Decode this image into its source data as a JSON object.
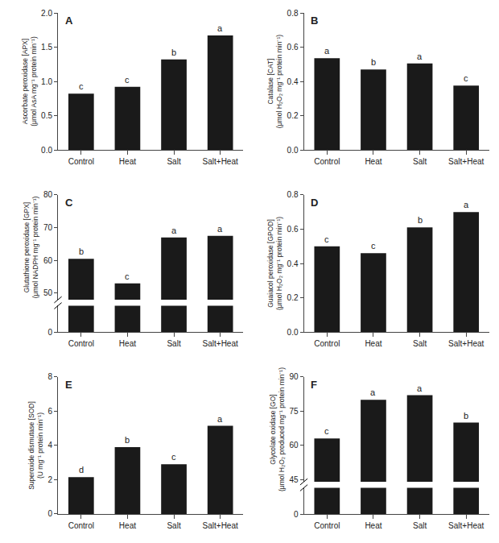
{
  "chart_data": [
    {
      "type": "bar",
      "title": "A",
      "categories": [
        "Control",
        "Heat",
        "Salt",
        "Salt+Heat"
      ],
      "values": [
        0.82,
        0.92,
        1.32,
        1.67
      ],
      "color": "#1a1a1a",
      "ylabel": "Ascorbate peroxidase [APX]\n(μmol AsA mg⁻¹ protein min⁻¹)",
      "ylim": [
        0.0,
        2.0
      ],
      "yticks": [
        {
          "value": 0.0,
          "label": "0.0"
        },
        0.5,
        {
          "value": 1.0,
          "label": "1.0"
        },
        1.5,
        {
          "value": 2.0,
          "label": "2.0"
        }
      ],
      "annotations": [
        {
          "x": "Control",
          "text": "c"
        },
        {
          "x": "Heat",
          "text": "c"
        },
        {
          "x": "Salt",
          "text": "b"
        },
        {
          "x": "Salt+Heat",
          "text": "a"
        }
      ],
      "grid": false
    },
    {
      "type": "bar",
      "title": "B",
      "categories": [
        "Control",
        "Heat",
        "Salt",
        "Salt+Heat"
      ],
      "values": [
        0.535,
        0.47,
        0.505,
        0.375
      ],
      "color": "#1a1a1a",
      "ylabel": "Catalase [CAT]\n(μmol H₂O₂ mg⁻¹ protein min⁻¹)",
      "ylim": [
        0.0,
        0.8
      ],
      "yticks": [
        {
          "value": 0.0,
          "label": "0.0"
        },
        0.2,
        0.4,
        0.6,
        0.8
      ],
      "annotations": [
        {
          "x": "Control",
          "text": "a"
        },
        {
          "x": "Heat",
          "text": "b"
        },
        {
          "x": "Salt",
          "text": "a"
        },
        {
          "x": "Salt+Heat",
          "text": "c"
        }
      ],
      "grid": false
    },
    {
      "type": "bar",
      "title": "C",
      "categories": [
        "Control",
        "Heat",
        "Salt",
        "Salt+Heat"
      ],
      "values": [
        60.5,
        53.0,
        67.0,
        67.5
      ],
      "color": "#1a1a1a",
      "ylabel": "Glutathione peroxidase [GPX]\n(μmol NADPH mg⁻¹ protein min⁻¹)",
      "ylim": [
        [
          0,
          6
        ],
        [
          48,
          80
        ]
      ],
      "yticks": [
        [
          0
        ],
        [
          50,
          60,
          70,
          80
        ]
      ],
      "annotations": [
        {
          "x": "Control",
          "text": "b"
        },
        {
          "x": "Heat",
          "text": "c"
        },
        {
          "x": "Salt",
          "text": "a"
        },
        {
          "x": "Salt+Heat",
          "text": "a"
        }
      ],
      "grid": false
    },
    {
      "type": "bar",
      "title": "D",
      "categories": [
        "Control",
        "Heat",
        "Salt",
        "Salt+Heat"
      ],
      "values": [
        0.5,
        0.46,
        0.61,
        0.7
      ],
      "color": "#1a1a1a",
      "ylabel": "Guaiacol peroxidase [GPOD]\n(μmol H₂O₂ mg⁻¹ protein min⁻¹)",
      "ylim": [
        0.0,
        0.8
      ],
      "yticks": [
        {
          "value": 0.0,
          "label": "0.0"
        },
        0.2,
        0.4,
        0.6,
        0.8
      ],
      "annotations": [
        {
          "x": "Control",
          "text": "c"
        },
        {
          "x": "Heat",
          "text": "c"
        },
        {
          "x": "Salt",
          "text": "b"
        },
        {
          "x": "Salt+Heat",
          "text": "a"
        }
      ],
      "grid": false
    },
    {
      "type": "bar",
      "title": "E",
      "categories": [
        "Control",
        "Heat",
        "Salt",
        "Salt+Heat"
      ],
      "values": [
        2.15,
        3.9,
        2.9,
        5.15
      ],
      "color": "#1a1a1a",
      "ylabel": "Superoxide dismutase [SOD]\n(U mg⁻¹ protein min⁻¹)",
      "ylim": [
        0,
        8
      ],
      "yticks": [
        0,
        2,
        4,
        6,
        8
      ],
      "annotations": [
        {
          "x": "Control",
          "text": "d"
        },
        {
          "x": "Heat",
          "text": "b"
        },
        {
          "x": "Salt",
          "text": "c"
        },
        {
          "x": "Salt+Heat",
          "text": "a"
        }
      ],
      "grid": false
    },
    {
      "type": "bar",
      "title": "F",
      "categories": [
        "Control",
        "Heat",
        "Salt",
        "Salt+Heat"
      ],
      "values": [
        63.0,
        80.0,
        82.0,
        70.0
      ],
      "color": "#1a1a1a",
      "ylabel": "Glycolate oxidase [GO]\n(μmol H₂O₂ produced mg⁻¹ protein min⁻¹)",
      "ylim": [
        [
          0,
          6
        ],
        [
          44,
          90
        ]
      ],
      "yticks": [
        [
          0
        ],
        [
          45,
          60,
          75,
          90
        ]
      ],
      "annotations": [
        {
          "x": "Control",
          "text": "c"
        },
        {
          "x": "Heat",
          "text": "a"
        },
        {
          "x": "Salt",
          "text": "a"
        },
        {
          "x": "Salt+Heat",
          "text": "b"
        }
      ],
      "grid": false
    }
  ]
}
